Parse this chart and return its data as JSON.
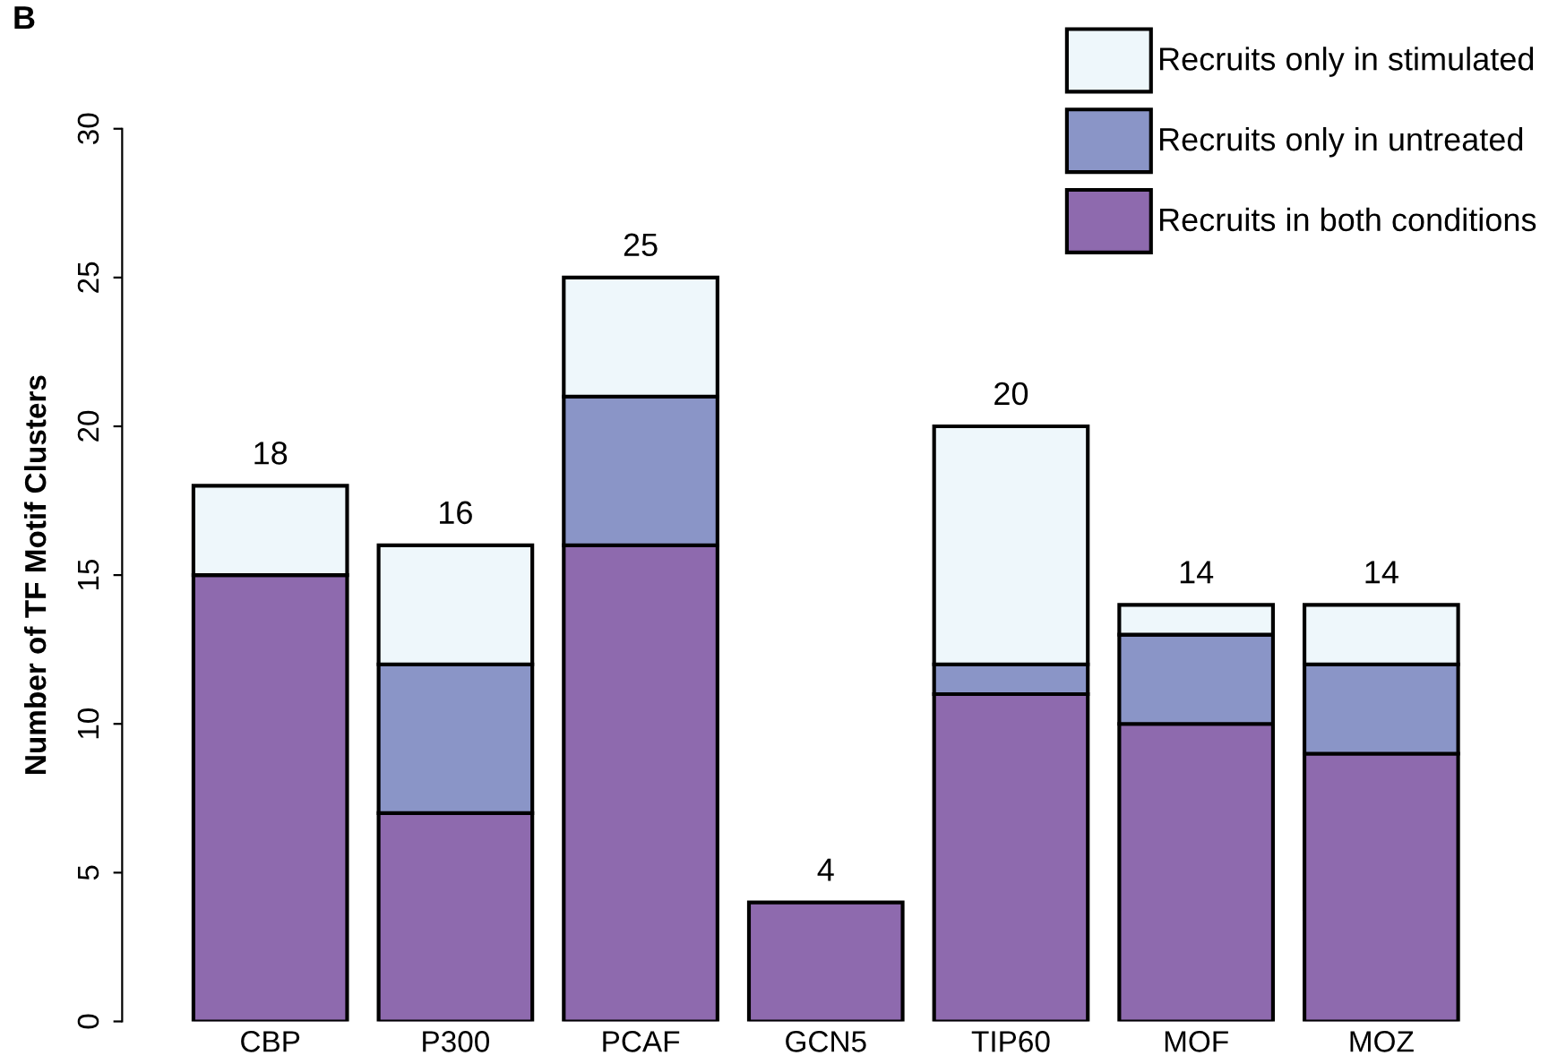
{
  "chart_data": {
    "type": "bar",
    "stacked": true,
    "ylabel": "Number of TF Motif Clusters",
    "categories": [
      "CBP",
      "P300",
      "PCAF",
      "GCN5",
      "TIP60",
      "MOF",
      "MOZ"
    ],
    "series": [
      {
        "name": "Recruits in both conditions",
        "color": "#8e6aae",
        "values": [
          15,
          7,
          16,
          4,
          11,
          10,
          9
        ]
      },
      {
        "name": "Recruits only in untreated",
        "color": "#8a95c7",
        "values": [
          0,
          5,
          5,
          0,
          1,
          3,
          3
        ]
      },
      {
        "name": "Recruits only in stimulated",
        "color": "#eef7fb",
        "values": [
          3,
          4,
          4,
          0,
          8,
          1,
          2
        ]
      }
    ],
    "totals": [
      "18",
      "16",
      "25",
      "4",
      "20",
      "14",
      "14"
    ],
    "ylim": [
      0,
      30
    ],
    "yticks": [
      0,
      5,
      10,
      15,
      20,
      25,
      30
    ],
    "grid": false,
    "legend": "top right",
    "annotations": [
      "B"
    ]
  }
}
